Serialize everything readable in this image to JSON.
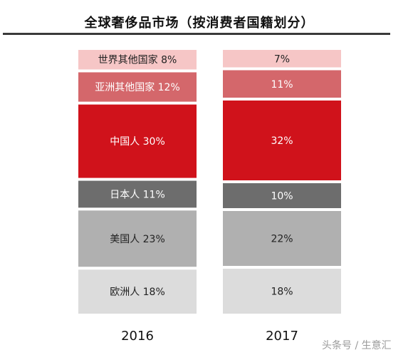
{
  "title": "全球奢侈品市场（按消费者国籍划分）",
  "watermark": "头条号 / 生意汇",
  "colors": {
    "other_world": "#f6c6c6",
    "other_asia": "#d4676b",
    "china": "#d0121b",
    "japan": "#6d6d6d",
    "usa": "#b0b0b0",
    "europe": "#dcdcdc"
  },
  "chart_data": {
    "type": "bar",
    "stacked": true,
    "percent_stacked": true,
    "categories": [
      "2016",
      "2017"
    ],
    "series": [
      {
        "name": "欧洲人",
        "values": [
          18,
          18
        ],
        "labels": [
          "欧洲人 18%",
          "18%"
        ],
        "color_key": "europe",
        "text_color": "#222222"
      },
      {
        "name": "美国人",
        "values": [
          23,
          22
        ],
        "labels": [
          "美国人 23%",
          "22%"
        ],
        "color_key": "usa",
        "text_color": "#222222"
      },
      {
        "name": "日本人",
        "values": [
          11,
          10
        ],
        "labels": [
          "日本人 11%",
          "10%"
        ],
        "color_key": "japan",
        "text_color": "#ffffff"
      },
      {
        "name": "中国人",
        "values": [
          30,
          32
        ],
        "labels": [
          "中国人 30%",
          "32%"
        ],
        "color_key": "china",
        "text_color": "#ffffff"
      },
      {
        "name": "亚洲其他国家",
        "values": [
          12,
          11
        ],
        "labels": [
          "亚洲其他国家 12%",
          "11%"
        ],
        "color_key": "other_asia",
        "text_color": "#ffffff"
      },
      {
        "name": "世界其他国家",
        "values": [
          8,
          7
        ],
        "labels": [
          "世界其他国家 8%",
          "7%"
        ],
        "color_key": "other_world",
        "text_color": "#222222"
      }
    ],
    "ylim": [
      0,
      100
    ]
  }
}
